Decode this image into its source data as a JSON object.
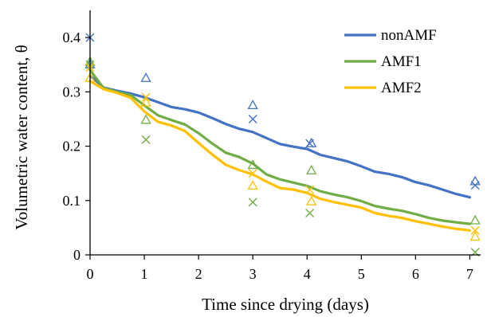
{
  "chart_data": {
    "type": "line",
    "title": "",
    "xlabel": "Time since drying (days)",
    "ylabel": "Volumetric water content, θ",
    "xlim": [
      0,
      7.2
    ],
    "ylim": [
      0,
      0.45
    ],
    "xticks": [
      0,
      1,
      2,
      3,
      4,
      5,
      6,
      7
    ],
    "yticks": [
      0,
      0.1,
      0.2,
      0.3,
      0.4
    ],
    "xtick_labels": [
      "0",
      "1",
      "2",
      "3",
      "4",
      "5",
      "6",
      "7"
    ],
    "ytick_labels": [
      "0",
      "0.1",
      "0.2",
      "0.3",
      "0.4"
    ],
    "grid": false,
    "legend_position": "top-right",
    "series": [
      {
        "name": "nonAMF",
        "color": "#4472C4",
        "line": {
          "x": [
            0,
            0.25,
            0.5,
            0.75,
            1,
            1.25,
            1.5,
            1.75,
            2,
            2.25,
            2.5,
            2.75,
            3,
            3.25,
            3.5,
            3.75,
            4,
            4.25,
            4.5,
            4.75,
            5,
            5.25,
            5.5,
            5.75,
            6,
            6.25,
            6.5,
            6.75,
            7
          ],
          "y": [
            0.33,
            0.308,
            0.302,
            0.297,
            0.29,
            0.281,
            0.272,
            0.268,
            0.262,
            0.252,
            0.241,
            0.232,
            0.226,
            0.215,
            0.204,
            0.199,
            0.195,
            0.184,
            0.178,
            0.172,
            0.163,
            0.153,
            0.149,
            0.143,
            0.134,
            0.128,
            0.12,
            0.112,
            0.106
          ]
        },
        "markers_cross": {
          "x": [
            0,
            3.0,
            4.05,
            7.1
          ],
          "y": [
            0.4,
            0.25,
            0.205,
            0.128
          ]
        },
        "markers_triangle": {
          "x": [
            0,
            1.03,
            3.0,
            4.08,
            7.1
          ],
          "y": [
            0.35,
            0.325,
            0.275,
            0.205,
            0.135
          ]
        }
      },
      {
        "name": "AMF1",
        "color": "#70AD47",
        "line": {
          "x": [
            0,
            0.25,
            0.5,
            0.75,
            1,
            1.25,
            1.5,
            1.75,
            2,
            2.25,
            2.5,
            2.75,
            3,
            3.25,
            3.5,
            3.75,
            4,
            4.25,
            4.5,
            4.75,
            5,
            5.25,
            5.5,
            5.75,
            6,
            6.25,
            6.5,
            6.75,
            7
          ],
          "y": [
            0.34,
            0.307,
            0.3,
            0.294,
            0.275,
            0.257,
            0.248,
            0.24,
            0.224,
            0.205,
            0.188,
            0.18,
            0.168,
            0.148,
            0.139,
            0.133,
            0.127,
            0.117,
            0.111,
            0.106,
            0.099,
            0.09,
            0.085,
            0.081,
            0.075,
            0.068,
            0.063,
            0.06,
            0.057
          ]
        },
        "markers_cross": {
          "x": [
            0,
            1.03,
            3.0,
            4.05,
            7.1
          ],
          "y": [
            0.35,
            0.212,
            0.097,
            0.077,
            0.005
          ]
        },
        "markers_triangle": {
          "x": [
            0,
            1.03,
            3.0,
            4.08,
            7.1
          ],
          "y": [
            0.355,
            0.248,
            0.165,
            0.155,
            0.063
          ]
        }
      },
      {
        "name": "AMF2",
        "color": "#FFC000",
        "line": {
          "x": [
            0,
            0.25,
            0.5,
            0.75,
            1,
            1.25,
            1.5,
            1.75,
            2,
            2.25,
            2.5,
            2.75,
            3,
            3.25,
            3.5,
            3.75,
            4,
            4.25,
            4.5,
            4.75,
            5,
            5.25,
            5.5,
            5.75,
            6,
            6.25,
            6.5,
            6.75,
            7
          ],
          "y": [
            0.32,
            0.305,
            0.298,
            0.289,
            0.264,
            0.245,
            0.238,
            0.228,
            0.206,
            0.185,
            0.166,
            0.156,
            0.148,
            0.135,
            0.123,
            0.12,
            0.114,
            0.103,
            0.097,
            0.092,
            0.087,
            0.077,
            0.072,
            0.068,
            0.062,
            0.057,
            0.052,
            0.048,
            0.045
          ]
        },
        "markers_cross": {
          "x": [
            0,
            1.03,
            3.0,
            4.05,
            7.1
          ],
          "y": [
            0.345,
            0.29,
            0.15,
            0.12,
            0.045
          ]
        },
        "markers_triangle": {
          "x": [
            0,
            1.03,
            3.0,
            4.08,
            7.1
          ],
          "y": [
            0.325,
            0.28,
            0.127,
            0.098,
            0.033
          ]
        }
      }
    ]
  }
}
